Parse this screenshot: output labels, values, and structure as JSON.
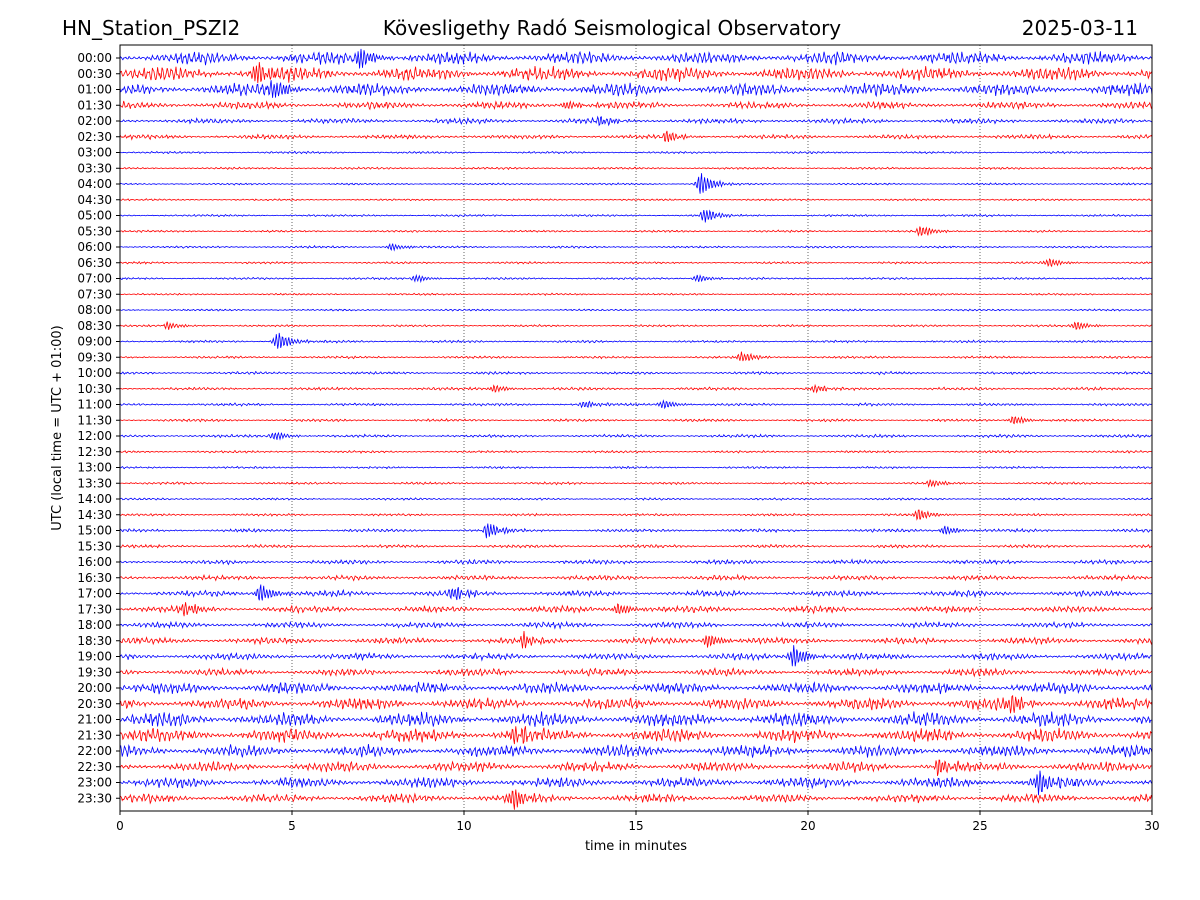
{
  "header": {
    "station": "HN_Station_PSZI2",
    "observatory": "Kövesligethy Radó Seismological Observatory",
    "date": "2025-03-11"
  },
  "chart_data": {
    "type": "line",
    "title": "Kövesligethy Radó Seismological Observatory",
    "xlabel": "time in minutes",
    "ylabel": "UTC (local time = UTC + 01:00)",
    "xlim": [
      0,
      30
    ],
    "x_ticks": [
      "0",
      "5",
      "10",
      "15",
      "20",
      "25",
      "30"
    ],
    "x_tick_values": [
      0,
      5,
      10,
      15,
      20,
      25,
      30
    ],
    "grid": "vertical dotted at x ticks",
    "row_labels": [
      "00:00",
      "00:30",
      "01:00",
      "01:30",
      "02:00",
      "02:30",
      "03:00",
      "03:30",
      "04:00",
      "04:30",
      "05:00",
      "05:30",
      "06:00",
      "06:30",
      "07:00",
      "07:30",
      "08:00",
      "08:30",
      "09:00",
      "09:30",
      "10:00",
      "10:30",
      "11:00",
      "11:30",
      "12:00",
      "12:30",
      "13:00",
      "13:30",
      "14:00",
      "14:30",
      "15:00",
      "15:30",
      "16:00",
      "16:30",
      "17:00",
      "17:30",
      "18:00",
      "18:30",
      "19:00",
      "19:30",
      "20:00",
      "20:30",
      "21:00",
      "21:30",
      "22:00",
      "22:30",
      "23:00",
      "23:30"
    ],
    "trace_colors": [
      "#0000ff",
      "#ff0000"
    ],
    "activity": [
      0.9,
      1.0,
      0.9,
      0.5,
      0.35,
      0.3,
      0.12,
      0.12,
      0.1,
      0.1,
      0.12,
      0.12,
      0.12,
      0.12,
      0.12,
      0.1,
      0.1,
      0.12,
      0.14,
      0.14,
      0.16,
      0.18,
      0.16,
      0.16,
      0.18,
      0.14,
      0.12,
      0.14,
      0.12,
      0.14,
      0.2,
      0.2,
      0.28,
      0.32,
      0.42,
      0.45,
      0.38,
      0.45,
      0.45,
      0.5,
      0.8,
      0.85,
      1.0,
      0.95,
      0.85,
      0.7,
      0.75,
      0.6
    ],
    "events": [
      {
        "row": 0,
        "x": 7.0,
        "amp": 1.2
      },
      {
        "row": 1,
        "x": 4.0,
        "amp": 1.3
      },
      {
        "row": 2,
        "x": 4.5,
        "amp": 1.2
      },
      {
        "row": 3,
        "x": 13.0,
        "amp": 0.5
      },
      {
        "row": 4,
        "x": 14.0,
        "amp": 0.5
      },
      {
        "row": 5,
        "x": 15.9,
        "amp": 0.6
      },
      {
        "row": 8,
        "x": 16.9,
        "amp": 1.2
      },
      {
        "row": 10,
        "x": 17.0,
        "amp": 0.8
      },
      {
        "row": 11,
        "x": 23.3,
        "amp": 0.6
      },
      {
        "row": 12,
        "x": 7.9,
        "amp": 0.4
      },
      {
        "row": 13,
        "x": 27.0,
        "amp": 0.5
      },
      {
        "row": 14,
        "x": 16.8,
        "amp": 0.4
      },
      {
        "row": 14,
        "x": 8.6,
        "amp": 0.4
      },
      {
        "row": 17,
        "x": 27.8,
        "amp": 0.5
      },
      {
        "row": 17,
        "x": 1.4,
        "amp": 0.4
      },
      {
        "row": 18,
        "x": 4.6,
        "amp": 1.0
      },
      {
        "row": 19,
        "x": 18.1,
        "amp": 0.6
      },
      {
        "row": 21,
        "x": 10.9,
        "amp": 0.4
      },
      {
        "row": 21,
        "x": 20.2,
        "amp": 0.4
      },
      {
        "row": 22,
        "x": 13.5,
        "amp": 0.4
      },
      {
        "row": 22,
        "x": 15.8,
        "amp": 0.5
      },
      {
        "row": 23,
        "x": 26.0,
        "amp": 0.5
      },
      {
        "row": 24,
        "x": 4.5,
        "amp": 0.5
      },
      {
        "row": 27,
        "x": 23.6,
        "amp": 0.4
      },
      {
        "row": 29,
        "x": 23.2,
        "amp": 0.7
      },
      {
        "row": 30,
        "x": 10.7,
        "amp": 0.9
      },
      {
        "row": 30,
        "x": 24.0,
        "amp": 0.5
      },
      {
        "row": 34,
        "x": 4.1,
        "amp": 1.0
      },
      {
        "row": 34,
        "x": 9.7,
        "amp": 0.8
      },
      {
        "row": 35,
        "x": 1.9,
        "amp": 0.8
      },
      {
        "row": 35,
        "x": 14.5,
        "amp": 0.7
      },
      {
        "row": 37,
        "x": 11.7,
        "amp": 0.8
      },
      {
        "row": 37,
        "x": 17.1,
        "amp": 0.8
      },
      {
        "row": 38,
        "x": 19.6,
        "amp": 1.2
      },
      {
        "row": 41,
        "x": 25.9,
        "amp": 1.0
      },
      {
        "row": 43,
        "x": 11.5,
        "amp": 1.0
      },
      {
        "row": 45,
        "x": 23.8,
        "amp": 1.0
      },
      {
        "row": 46,
        "x": 26.7,
        "amp": 1.4
      },
      {
        "row": 47,
        "x": 11.4,
        "amp": 1.2
      }
    ]
  }
}
